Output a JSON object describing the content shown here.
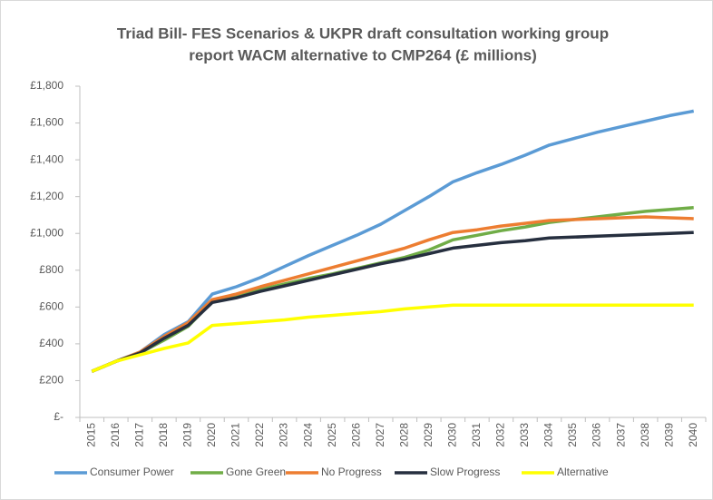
{
  "chart_data": {
    "type": "line",
    "title": [
      "Triad Bill- FES Scenarios & UKPR draft consultation working group",
      "report WACM alternative to CMP264 (£ millions)"
    ],
    "categories": [
      "2015",
      "2016",
      "2017",
      "2018",
      "2019",
      "2020",
      "2021",
      "2022",
      "2023",
      "2024",
      "2025",
      "2026",
      "2027",
      "2028",
      "2029",
      "2030",
      "2031",
      "2032",
      "2033",
      "2034",
      "2035",
      "2036",
      "2037",
      "2038",
      "2039",
      "2040"
    ],
    "series": [
      {
        "name": "Consumer Power",
        "color": "#5b9bd5",
        "values": [
          250,
          305,
          355,
          450,
          520,
          670,
          710,
          760,
          820,
          880,
          935,
          990,
          1050,
          1125,
          1200,
          1280,
          1330,
          1375,
          1425,
          1480,
          1515,
          1550,
          1580,
          1610,
          1640,
          1665
        ]
      },
      {
        "name": "Gone Green",
        "color": "#70ad47",
        "values": [
          250,
          305,
          350,
          420,
          495,
          630,
          660,
          695,
          725,
          755,
          780,
          810,
          840,
          870,
          910,
          965,
          990,
          1015,
          1035,
          1060,
          1075,
          1090,
          1105,
          1120,
          1130,
          1140
        ]
      },
      {
        "name": "No Progress",
        "color": "#ed7d31",
        "values": [
          250,
          305,
          355,
          440,
          515,
          640,
          670,
          710,
          745,
          780,
          815,
          850,
          885,
          920,
          965,
          1005,
          1020,
          1040,
          1055,
          1070,
          1075,
          1080,
          1085,
          1090,
          1085,
          1080
        ]
      },
      {
        "name": "Slow Progress",
        "color": "#262f3f",
        "values": [
          250,
          305,
          350,
          430,
          500,
          625,
          650,
          685,
          715,
          745,
          775,
          805,
          835,
          860,
          890,
          920,
          935,
          950,
          960,
          975,
          980,
          985,
          990,
          995,
          1000,
          1005
        ]
      },
      {
        "name": "Alternative",
        "color": "#ffff00",
        "values": [
          250,
          305,
          340,
          375,
          405,
          500,
          510,
          520,
          530,
          545,
          555,
          565,
          575,
          590,
          600,
          610,
          610,
          610,
          610,
          610,
          610,
          610,
          610,
          610,
          610,
          610
        ]
      }
    ],
    "ylim": [
      0,
      1800
    ],
    "yticks": [
      {
        "value": 0,
        "label": "£-"
      },
      {
        "value": 200,
        "label": "£200"
      },
      {
        "value": 400,
        "label": "£400"
      },
      {
        "value": 600,
        "label": "£600"
      },
      {
        "value": 800,
        "label": "£800"
      },
      {
        "value": 1000,
        "label": "£1,000"
      },
      {
        "value": 1200,
        "label": "£1,200"
      },
      {
        "value": 1400,
        "label": "£1,400"
      },
      {
        "value": 1600,
        "label": "£1,600"
      },
      {
        "value": 1800,
        "label": "£1,800"
      }
    ],
    "grid": false,
    "legend": "bottom"
  }
}
